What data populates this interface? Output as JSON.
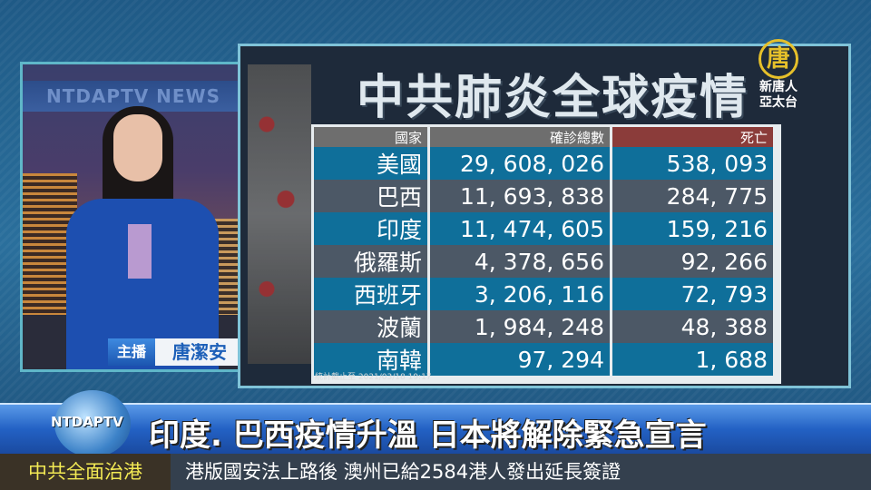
{
  "anchor": {
    "studio_sign": "NTDAPTV NEWS",
    "role": "主播",
    "name": "唐潔安"
  },
  "graphic": {
    "title": "中共肺炎全球疫情",
    "logo": {
      "glyph": "唐",
      "line1": "新唐人",
      "line2": "亞太台"
    },
    "table": {
      "headers": [
        "國家",
        "確診總數",
        "死亡"
      ],
      "rows": [
        [
          "美國",
          "29, 608, 026",
          "538, 093"
        ],
        [
          "巴西",
          "11, 693, 838",
          "284, 775"
        ],
        [
          "印度",
          "11, 474, 605",
          "159, 216"
        ],
        [
          "俄羅斯",
          "4, 378, 656",
          "92, 266"
        ],
        [
          "西班牙",
          "3, 206, 116",
          "72, 793"
        ],
        [
          "波蘭",
          "1, 984, 248",
          "48, 388"
        ],
        [
          "南韓",
          "97, 294",
          "1, 688"
        ]
      ],
      "colors": {
        "row_blue": "#0f6f9a",
        "row_gray": "#4c5866",
        "death_header": "#8b3c3a"
      }
    },
    "footer_note": "統計截止至 2021/03/18 19:17"
  },
  "headline": {
    "logo_text": "NTDAPTV",
    "text": "印度. 巴西疫情升溫  日本將解除緊急宣言"
  },
  "ticker": {
    "label": "中共全面治港",
    "text": "港版國安法上路後  澳州已給2584港人發出延長簽證"
  }
}
